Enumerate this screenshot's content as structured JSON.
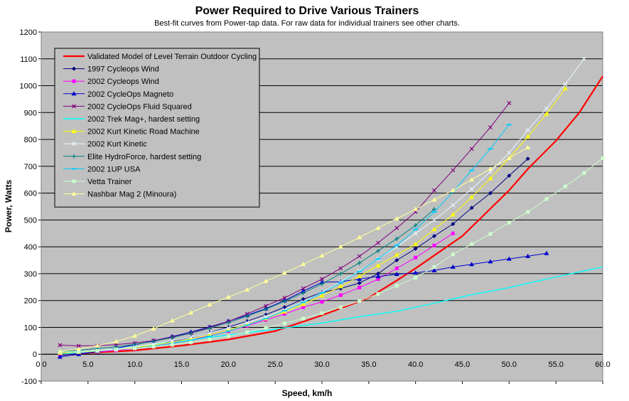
{
  "chart_data": {
    "type": "line",
    "title": "Power Required to Drive Various Trainers",
    "subtitle": "Best-fit curves from Power-tap data. For raw data for individual trainers see other charts.",
    "xlabel": "Speed, km/h",
    "ylabel": "Power, Watts",
    "xlim": [
      0,
      60
    ],
    "ylim": [
      -100,
      1200
    ],
    "x_ticks": [
      "0.0",
      "5.0",
      "10.0",
      "15.0",
      "20.0",
      "25.0",
      "30.0",
      "35.0",
      "40.0",
      "45.0",
      "50.0",
      "55.0",
      "60.0"
    ],
    "y_ticks": [
      "-100",
      "0",
      "100",
      "200",
      "300",
      "400",
      "500",
      "600",
      "700",
      "800",
      "900",
      "1000",
      "1100",
      "1200"
    ],
    "grid": "horizontal",
    "legend_position": "top-left",
    "plot_background": "#c0c0c0",
    "series": [
      {
        "name": "Validated Model of Level Terrain Outdoor Cycling",
        "color": "#ff0000",
        "marker": "none",
        "width": 2.2,
        "points": [
          [
            2,
            1
          ],
          [
            5,
            5
          ],
          [
            10,
            14
          ],
          [
            15,
            32
          ],
          [
            20,
            55
          ],
          [
            25,
            86
          ],
          [
            30,
            145
          ],
          [
            35,
            210
          ],
          [
            38,
            275
          ],
          [
            40,
            320
          ],
          [
            45,
            440
          ],
          [
            47.5,
            525
          ],
          [
            50,
            610
          ],
          [
            52,
            690
          ],
          [
            55,
            795
          ],
          [
            57.5,
            900
          ],
          [
            60,
            1035
          ]
        ]
      },
      {
        "name": "1997 Cycleops Wind",
        "color": "#000080",
        "marker": "diamond",
        "width": 1,
        "points": [
          [
            2,
            -5
          ],
          [
            4,
            3
          ],
          [
            6,
            8
          ],
          [
            8,
            15
          ],
          [
            10,
            24
          ],
          [
            12,
            35
          ],
          [
            14,
            48
          ],
          [
            16,
            63
          ],
          [
            18,
            81
          ],
          [
            20,
            101
          ],
          [
            22,
            123
          ],
          [
            24,
            147
          ],
          [
            26,
            175
          ],
          [
            28,
            205
          ],
          [
            30,
            230
          ],
          [
            32,
            245
          ],
          [
            34,
            265
          ],
          [
            36,
            300
          ],
          [
            38,
            350
          ],
          [
            40,
            393
          ],
          [
            42,
            440
          ],
          [
            44,
            485
          ],
          [
            46,
            545
          ],
          [
            48,
            600
          ],
          [
            50,
            665
          ],
          [
            52,
            728
          ]
        ]
      },
      {
        "name": "2002 Cycleops Wind",
        "color": "#ff00ff",
        "marker": "square",
        "width": 1,
        "points": [
          [
            2,
            0
          ],
          [
            4,
            4
          ],
          [
            6,
            8
          ],
          [
            8,
            14
          ],
          [
            10,
            21
          ],
          [
            12,
            30
          ],
          [
            14,
            41
          ],
          [
            16,
            54
          ],
          [
            18,
            69
          ],
          [
            20,
            86
          ],
          [
            22,
            106
          ],
          [
            24,
            128
          ],
          [
            26,
            150
          ],
          [
            28,
            175
          ],
          [
            30,
            195
          ],
          [
            32,
            220
          ],
          [
            34,
            248
          ],
          [
            36,
            280
          ],
          [
            38,
            320
          ],
          [
            40,
            360
          ],
          [
            42,
            405
          ],
          [
            44,
            450
          ]
        ]
      },
      {
        "name": "2002 CycleOps Magneto",
        "color": "#0000cc",
        "marker": "triangle",
        "width": 1,
        "points": [
          [
            2,
            -10
          ],
          [
            4,
            0
          ],
          [
            6,
            10
          ],
          [
            8,
            22
          ],
          [
            10,
            35
          ],
          [
            12,
            50
          ],
          [
            14,
            66
          ],
          [
            16,
            83
          ],
          [
            18,
            102
          ],
          [
            20,
            123
          ],
          [
            22,
            145
          ],
          [
            24,
            170
          ],
          [
            26,
            200
          ],
          [
            28,
            235
          ],
          [
            30,
            268
          ],
          [
            32,
            270
          ],
          [
            34,
            280
          ],
          [
            36,
            290
          ],
          [
            38,
            298
          ],
          [
            40,
            303
          ],
          [
            42,
            312
          ],
          [
            44,
            325
          ],
          [
            46,
            335
          ],
          [
            48,
            345
          ],
          [
            50,
            355
          ],
          [
            52,
            365
          ],
          [
            54,
            376
          ]
        ]
      },
      {
        "name": "2002 CycleOps Fluid Squared",
        "color": "#800080",
        "marker": "x",
        "width": 1,
        "points": [
          [
            2,
            34
          ],
          [
            4,
            31
          ],
          [
            6,
            32
          ],
          [
            8,
            36
          ],
          [
            10,
            42
          ],
          [
            12,
            51
          ],
          [
            14,
            64
          ],
          [
            16,
            79
          ],
          [
            18,
            100
          ],
          [
            20,
            122
          ],
          [
            22,
            150
          ],
          [
            24,
            180
          ],
          [
            26,
            210
          ],
          [
            28,
            245
          ],
          [
            30,
            280
          ],
          [
            32,
            320
          ],
          [
            34,
            365
          ],
          [
            36,
            415
          ],
          [
            38,
            470
          ],
          [
            40,
            530
          ],
          [
            42,
            610
          ],
          [
            44,
            685
          ],
          [
            46,
            765
          ],
          [
            48,
            845
          ],
          [
            50,
            935
          ]
        ]
      },
      {
        "name": "2002 Trek  Mag+, hardest setting",
        "color": "#00ffff",
        "marker": "none",
        "width": 1.4,
        "points": [
          [
            2,
            0
          ],
          [
            6,
            12
          ],
          [
            10,
            28
          ],
          [
            14,
            45
          ],
          [
            18,
            63
          ],
          [
            22,
            80
          ],
          [
            26,
            98
          ],
          [
            30,
            116
          ],
          [
            34,
            140
          ],
          [
            38,
            160
          ],
          [
            42,
            190
          ],
          [
            46,
            222
          ],
          [
            50,
            248
          ],
          [
            54,
            280
          ],
          [
            58,
            310
          ],
          [
            60,
            325
          ]
        ]
      },
      {
        "name": "2002 Kurt Kinetic Road Machine",
        "color": "#ffff00",
        "marker": "triangle",
        "width": 1,
        "points": [
          [
            2,
            5
          ],
          [
            4,
            8
          ],
          [
            6,
            12
          ],
          [
            8,
            18
          ],
          [
            10,
            25
          ],
          [
            12,
            34
          ],
          [
            14,
            45
          ],
          [
            16,
            57
          ],
          [
            18,
            72
          ],
          [
            20,
            90
          ],
          [
            22,
            110
          ],
          [
            24,
            133
          ],
          [
            26,
            158
          ],
          [
            28,
            186
          ],
          [
            30,
            218
          ],
          [
            32,
            252
          ],
          [
            34,
            290
          ],
          [
            36,
            330
          ],
          [
            38,
            370
          ],
          [
            40,
            410
          ],
          [
            42,
            465
          ],
          [
            44,
            520
          ],
          [
            46,
            585
          ],
          [
            48,
            655
          ],
          [
            50,
            730
          ],
          [
            52,
            810
          ],
          [
            54,
            895
          ],
          [
            56,
            990
          ]
        ]
      },
      {
        "name": "2002 Kurt Kinetic",
        "color": "#e8f8ff",
        "marker": "x",
        "width": 1,
        "points": [
          [
            2,
            8
          ],
          [
            4,
            10
          ],
          [
            6,
            14
          ],
          [
            8,
            20
          ],
          [
            10,
            28
          ],
          [
            12,
            38
          ],
          [
            14,
            50
          ],
          [
            16,
            64
          ],
          [
            18,
            80
          ],
          [
            20,
            98
          ],
          [
            22,
            118
          ],
          [
            24,
            140
          ],
          [
            26,
            165
          ],
          [
            28,
            195
          ],
          [
            30,
            230
          ],
          [
            32,
            270
          ],
          [
            34,
            310
          ],
          [
            36,
            355
          ],
          [
            38,
            400
          ],
          [
            40,
            450
          ],
          [
            42,
            500
          ],
          [
            44,
            555
          ],
          [
            46,
            615
          ],
          [
            48,
            680
          ],
          [
            50,
            750
          ],
          [
            52,
            835
          ],
          [
            54,
            915
          ],
          [
            56,
            1005
          ],
          [
            58,
            1100
          ]
        ]
      },
      {
        "name": "Elite HydroForce, hardest setting",
        "color": "#008080",
        "marker": "plus",
        "width": 1,
        "points": [
          [
            2,
            10
          ],
          [
            4,
            15
          ],
          [
            6,
            21
          ],
          [
            8,
            28
          ],
          [
            10,
            37
          ],
          [
            12,
            48
          ],
          [
            14,
            62
          ],
          [
            16,
            78
          ],
          [
            18,
            97
          ],
          [
            20,
            118
          ],
          [
            22,
            142
          ],
          [
            24,
            168
          ],
          [
            26,
            197
          ],
          [
            28,
            228
          ],
          [
            30,
            262
          ],
          [
            32,
            300
          ],
          [
            34,
            340
          ],
          [
            36,
            385
          ],
          [
            38,
            430
          ],
          [
            40,
            480
          ],
          [
            42,
            540
          ]
        ]
      },
      {
        "name": "2002 1UP USA",
        "color": "#00ccff",
        "marker": "dash",
        "width": 1,
        "points": [
          [
            2,
            8
          ],
          [
            4,
            10
          ],
          [
            6,
            13
          ],
          [
            8,
            17
          ],
          [
            10,
            22
          ],
          [
            12,
            30
          ],
          [
            14,
            40
          ],
          [
            16,
            52
          ],
          [
            18,
            67
          ],
          [
            20,
            86
          ],
          [
            22,
            108
          ],
          [
            24,
            133
          ],
          [
            26,
            162
          ],
          [
            28,
            193
          ],
          [
            30,
            228
          ],
          [
            32,
            267
          ],
          [
            34,
            308
          ],
          [
            36,
            355
          ],
          [
            38,
            405
          ],
          [
            40,
            465
          ],
          [
            42,
            530
          ],
          [
            44,
            605
          ],
          [
            46,
            685
          ],
          [
            48,
            765
          ],
          [
            50,
            855
          ]
        ]
      },
      {
        "name": "Vetta Trainer",
        "color": "#ccffcc",
        "marker": "square",
        "width": 1,
        "points": [
          [
            2,
            8
          ],
          [
            4,
            10
          ],
          [
            6,
            13
          ],
          [
            8,
            17
          ],
          [
            10,
            22
          ],
          [
            12,
            28
          ],
          [
            14,
            35
          ],
          [
            16,
            44
          ],
          [
            18,
            55
          ],
          [
            20,
            67
          ],
          [
            22,
            82
          ],
          [
            24,
            98
          ],
          [
            26,
            115
          ],
          [
            28,
            133
          ],
          [
            30,
            153
          ],
          [
            32,
            175
          ],
          [
            34,
            198
          ],
          [
            36,
            225
          ],
          [
            38,
            255
          ],
          [
            40,
            285
          ],
          [
            42,
            325
          ],
          [
            44,
            372
          ],
          [
            46,
            410
          ],
          [
            48,
            448
          ],
          [
            50,
            490
          ],
          [
            52,
            530
          ],
          [
            54,
            578
          ],
          [
            56,
            625
          ],
          [
            58,
            675
          ],
          [
            60,
            730
          ]
        ]
      },
      {
        "name": "Nashbar Mag 2 (Minoura)",
        "color": "#ffff99",
        "marker": "triangle",
        "width": 1,
        "points": [
          [
            2,
            10
          ],
          [
            4,
            20
          ],
          [
            6,
            32
          ],
          [
            8,
            47
          ],
          [
            10,
            68
          ],
          [
            12,
            95
          ],
          [
            14,
            125
          ],
          [
            16,
            155
          ],
          [
            18,
            185
          ],
          [
            20,
            213
          ],
          [
            22,
            240
          ],
          [
            24,
            272
          ],
          [
            26,
            303
          ],
          [
            28,
            335
          ],
          [
            30,
            367
          ],
          [
            32,
            400
          ],
          [
            34,
            435
          ],
          [
            36,
            470
          ],
          [
            38,
            505
          ],
          [
            40,
            540
          ],
          [
            42,
            575
          ],
          [
            44,
            610
          ],
          [
            46,
            650
          ],
          [
            48,
            690
          ],
          [
            50,
            730
          ],
          [
            52,
            770
          ]
        ]
      }
    ]
  }
}
